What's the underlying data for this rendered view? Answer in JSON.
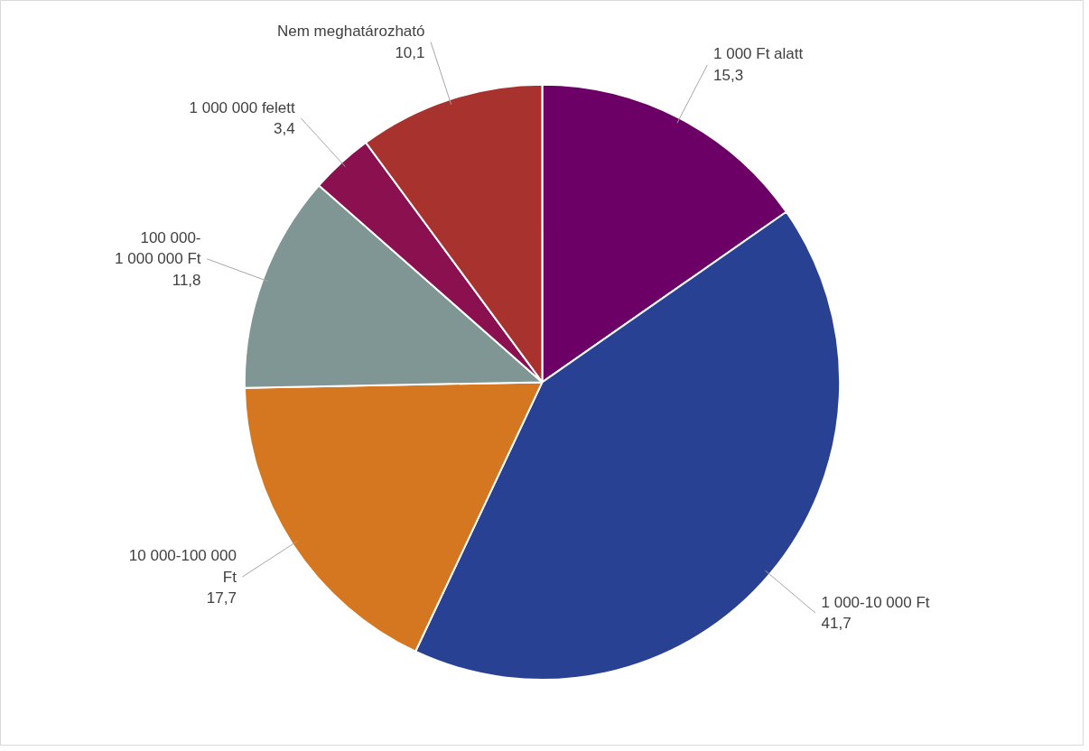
{
  "chart_data": {
    "type": "pie",
    "categories": [
      "1 000 Ft alatt",
      "1 000-10 000 Ft",
      "10 000-100 000\nFt",
      "100 000-\n1 000 000 Ft",
      "1 000 000 felett",
      "Nem meghatározható"
    ],
    "values": [
      15.3,
      41.7,
      17.7,
      11.8,
      3.4,
      10.1
    ],
    "value_labels": [
      "15,3",
      "41,7",
      "17,7",
      "11,8",
      "3,4",
      "10,1"
    ],
    "colors": [
      "#6d0066",
      "#284192",
      "#d47720",
      "#7f9694",
      "#8b1050",
      "#a8322d"
    ],
    "legend": false
  }
}
